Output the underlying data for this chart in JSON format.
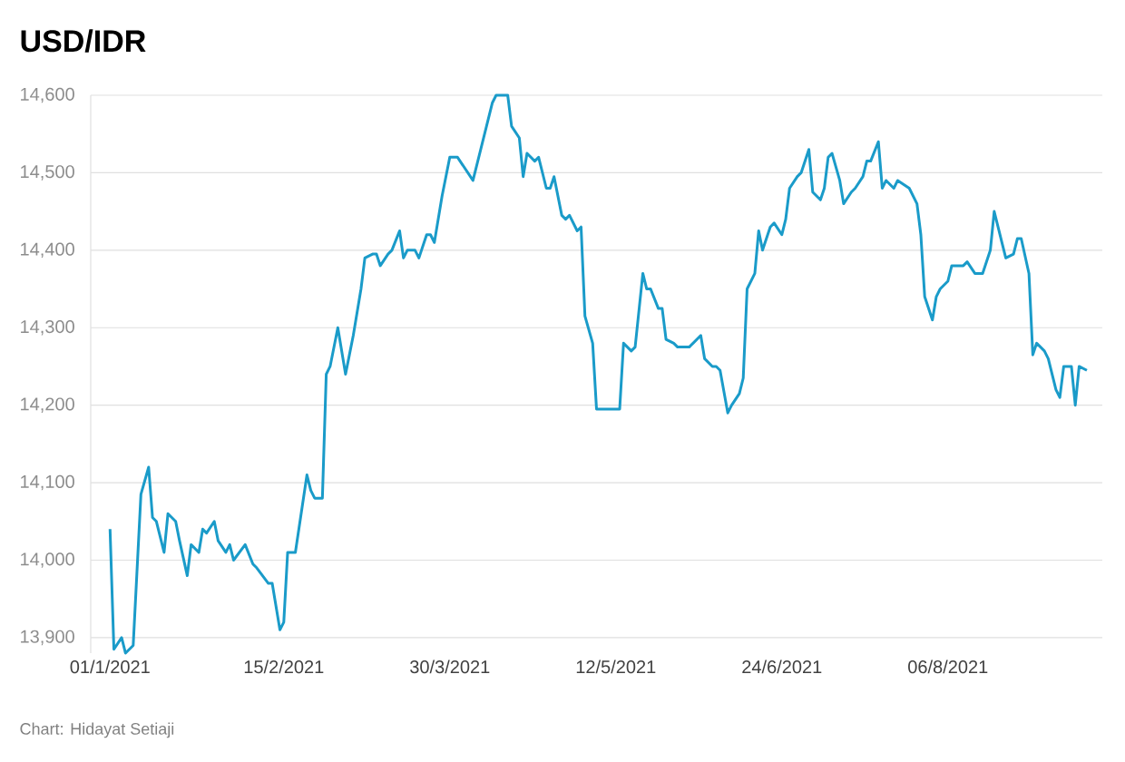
{
  "chart_data": {
    "type": "line",
    "title": "USD/IDR",
    "annotations": [
      "Chart: Hidayat Setiaji"
    ],
    "x": [
      "2021-01-01",
      "2021-01-02",
      "2021-01-04",
      "2021-01-05",
      "2021-01-07",
      "2021-01-09",
      "2021-01-11",
      "2021-01-12",
      "2021-01-13",
      "2021-01-15",
      "2021-01-16",
      "2021-01-18",
      "2021-01-19",
      "2021-01-21",
      "2021-01-22",
      "2021-01-24",
      "2021-01-25",
      "2021-01-26",
      "2021-01-28",
      "2021-01-29",
      "2021-01-31",
      "2021-02-01",
      "2021-02-02",
      "2021-02-05",
      "2021-02-07",
      "2021-02-08",
      "2021-02-11",
      "2021-02-12",
      "2021-02-14",
      "2021-02-15",
      "2021-02-16",
      "2021-02-18",
      "2021-02-21",
      "2021-02-22",
      "2021-02-23",
      "2021-02-25",
      "2021-02-26",
      "2021-02-27",
      "2021-03-01",
      "2021-03-03",
      "2021-03-04",
      "2021-03-05",
      "2021-03-07",
      "2021-03-08",
      "2021-03-10",
      "2021-03-11",
      "2021-03-12",
      "2021-03-14",
      "2021-03-15",
      "2021-03-17",
      "2021-03-18",
      "2021-03-19",
      "2021-03-21",
      "2021-03-22",
      "2021-03-24",
      "2021-03-25",
      "2021-03-26",
      "2021-03-28",
      "2021-03-30",
      "2021-04-01",
      "2021-04-05",
      "2021-04-07",
      "2021-04-10",
      "2021-04-11",
      "2021-04-14",
      "2021-04-15",
      "2021-04-17",
      "2021-04-18",
      "2021-04-19",
      "2021-04-21",
      "2021-04-22",
      "2021-04-24",
      "2021-04-25",
      "2021-04-26",
      "2021-04-28",
      "2021-04-29",
      "2021-04-30",
      "2021-05-02",
      "2021-05-03",
      "2021-05-04",
      "2021-05-06",
      "2021-05-07",
      "2021-05-13",
      "2021-05-14",
      "2021-05-16",
      "2021-05-17",
      "2021-05-19",
      "2021-05-20",
      "2021-05-21",
      "2021-05-23",
      "2021-05-24",
      "2021-05-25",
      "2021-05-27",
      "2021-05-28",
      "2021-05-31",
      "2021-06-01",
      "2021-06-03",
      "2021-06-04",
      "2021-06-06",
      "2021-06-07",
      "2021-06-08",
      "2021-06-10",
      "2021-06-11",
      "2021-06-13",
      "2021-06-14",
      "2021-06-15",
      "2021-06-17",
      "2021-06-18",
      "2021-06-19",
      "2021-06-21",
      "2021-06-22",
      "2021-06-24",
      "2021-06-25",
      "2021-06-26",
      "2021-06-28",
      "2021-06-29",
      "2021-07-01",
      "2021-07-02",
      "2021-07-04",
      "2021-07-05",
      "2021-07-06",
      "2021-07-07",
      "2021-07-09",
      "2021-07-10",
      "2021-07-12",
      "2021-07-13",
      "2021-07-15",
      "2021-07-16",
      "2021-07-17",
      "2021-07-19",
      "2021-07-20",
      "2021-07-21",
      "2021-07-23",
      "2021-07-24",
      "2021-07-27",
      "2021-07-29",
      "2021-07-30",
      "2021-07-31",
      "2021-08-02",
      "2021-08-03",
      "2021-08-04",
      "2021-08-06",
      "2021-08-07",
      "2021-08-10",
      "2021-08-11",
      "2021-08-13",
      "2021-08-15",
      "2021-08-17",
      "2021-08-18",
      "2021-08-20",
      "2021-08-21",
      "2021-08-23",
      "2021-08-24",
      "2021-08-25",
      "2021-08-27",
      "2021-08-28",
      "2021-08-29",
      "2021-08-31",
      "2021-09-01",
      "2021-09-03",
      "2021-09-04",
      "2021-09-05",
      "2021-09-07",
      "2021-09-08",
      "2021-09-09",
      "2021-09-11"
    ],
    "series": [
      {
        "color": "#1a9bc9",
        "values": [
          14040,
          13885,
          13900,
          13880,
          13890,
          14085,
          14120,
          14055,
          14050,
          14010,
          14060,
          14050,
          14025,
          13980,
          14020,
          14010,
          14040,
          14035,
          14050,
          14025,
          14010,
          14020,
          14000,
          14020,
          13995,
          13990,
          13970,
          13970,
          13910,
          13920,
          14010,
          14010,
          14110,
          14090,
          14080,
          14080,
          14240,
          14250,
          14300,
          14240,
          14265,
          14290,
          14350,
          14390,
          14395,
          14395,
          14380,
          14395,
          14400,
          14425,
          14390,
          14400,
          14400,
          14390,
          14420,
          14420,
          14410,
          14470,
          14520,
          14520,
          14490,
          14530,
          14590,
          14600,
          14600,
          14560,
          14545,
          14495,
          14525,
          14515,
          14520,
          14480,
          14480,
          14495,
          14445,
          14440,
          14445,
          14425,
          14430,
          14315,
          14280,
          14195,
          14195,
          14280,
          14270,
          14275,
          14370,
          14350,
          14350,
          14325,
          14325,
          14285,
          14280,
          14275,
          14275,
          14280,
          14290,
          14260,
          14250,
          14250,
          14245,
          14190,
          14200,
          14215,
          14235,
          14350,
          14370,
          14425,
          14400,
          14430,
          14435,
          14420,
          14440,
          14480,
          14495,
          14500,
          14530,
          14475,
          14465,
          14480,
          14520,
          14525,
          14490,
          14460,
          14475,
          14480,
          14495,
          14515,
          14515,
          14540,
          14480,
          14490,
          14480,
          14490,
          14480,
          14460,
          14420,
          14340,
          14310,
          14340,
          14350,
          14360,
          14380,
          14380,
          14385,
          14370,
          14370,
          14400,
          14450,
          14410,
          14390,
          14395,
          14415,
          14415,
          14370,
          14265,
          14280,
          14270,
          14260,
          14220,
          14210,
          14250,
          14250,
          14200,
          14250,
          14245
        ]
      }
    ],
    "xlim": [
      "2020-12-27",
      "2021-09-15"
    ],
    "xticks": [
      {
        "value": "2021-01-01",
        "label": "01/1/2021"
      },
      {
        "value": "2021-02-15",
        "label": "15/2/2021"
      },
      {
        "value": "2021-03-30",
        "label": "30/3/2021"
      },
      {
        "value": "2021-05-12",
        "label": "12/5/2021"
      },
      {
        "value": "2021-06-24",
        "label": "24/6/2021"
      },
      {
        "value": "2021-08-06",
        "label": "06/8/2021"
      }
    ],
    "yticks": [
      {
        "value": 13900,
        "label": "13,900"
      },
      {
        "value": 14000,
        "label": "14,000"
      },
      {
        "value": 14100,
        "label": "14,100"
      },
      {
        "value": 14200,
        "label": "14,200"
      },
      {
        "value": 14300,
        "label": "14,300"
      },
      {
        "value": 14400,
        "label": "14,400"
      },
      {
        "value": 14500,
        "label": "14,500"
      },
      {
        "value": 14600,
        "label": "14,600"
      }
    ],
    "ylim": [
      13880,
      14600
    ],
    "grid": "y",
    "marker": "none",
    "line_style": "solid"
  }
}
